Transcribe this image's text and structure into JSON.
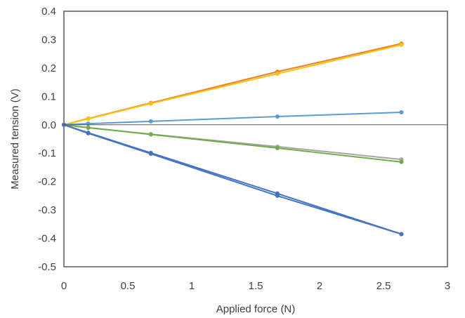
{
  "chart_data": {
    "type": "scatter",
    "title": "",
    "xlabel": "Applied force (N)",
    "ylabel": "Measured tension (V)",
    "xlim": [
      0,
      3
    ],
    "ylim": [
      -0.5,
      0.4
    ],
    "x_ticks": [
      "0",
      "0.5",
      "1",
      "1.5",
      "2",
      "2.5",
      "3"
    ],
    "y_ticks": [
      "0.4",
      "0.3",
      "0.2",
      "0.1",
      "0.0",
      "-0.1",
      "-0.2",
      "-0.3",
      "-0.4",
      "-0.5"
    ],
    "grid": false,
    "legend": "none",
    "x": [
      0,
      0.19,
      0.68,
      1.67,
      2.64
    ],
    "series": [
      {
        "color": "#ed7d31",
        "values": [
          0,
          0.022,
          0.077,
          0.187,
          0.286
        ]
      },
      {
        "color": "#ffc000",
        "values": [
          0,
          0.021,
          0.075,
          0.18,
          0.282
        ]
      },
      {
        "color": "#5b9bd5",
        "values": [
          0,
          0.004,
          0.012,
          0.029,
          0.044
        ]
      },
      {
        "color": "#a5a5a5",
        "values": [
          0,
          -0.01,
          -0.033,
          -0.077,
          -0.122
        ]
      },
      {
        "color": "#70ad47",
        "values": [
          0,
          -0.01,
          -0.034,
          -0.082,
          -0.131
        ]
      },
      {
        "color": "#4472c4",
        "values": [
          0,
          -0.028,
          -0.099,
          -0.242,
          -0.385
        ]
      },
      {
        "color": "#4472c4",
        "values": [
          0,
          -0.03,
          -0.102,
          -0.25,
          -0.385
        ]
      }
    ]
  }
}
